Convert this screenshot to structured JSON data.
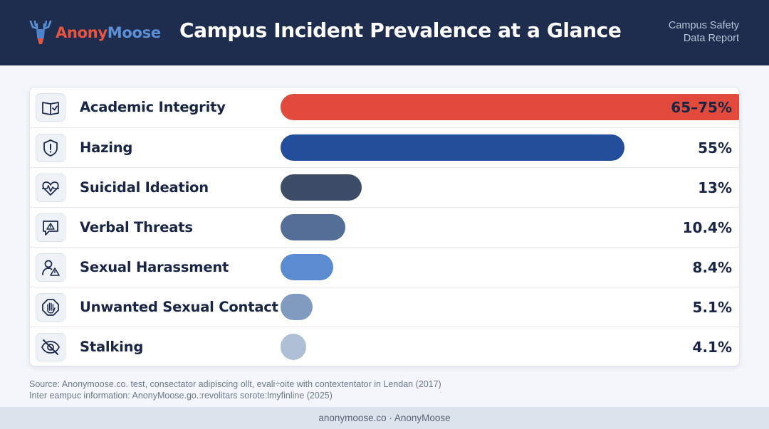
{
  "header": {
    "brand_part1": "Anony",
    "brand_part2": "Moose",
    "title": "Campus Incident Prevalence at a Glance",
    "subtitle_line1": "Campus Safety",
    "subtitle_line2": "Data Report"
  },
  "chart_data": {
    "type": "bar",
    "orientation": "horizontal",
    "title": "Campus Incident Prevalence at a Glance",
    "unit": "%",
    "xlim": [
      0,
      80
    ],
    "grid": false,
    "categories": [
      "Academic Integrity",
      "Hazing",
      "Suicidal Ideation",
      "Verbal Threats",
      "Sexual Harassment",
      "Unwanted Sexual Contact",
      "Stalking"
    ],
    "values": [
      75,
      55,
      13,
      10.4,
      8.4,
      5.1,
      4.1
    ],
    "value_labels": [
      "65–75%",
      "55%",
      "13%",
      "10.4%",
      "8.4%",
      "5.1%",
      "4.1%"
    ],
    "icons": [
      "book-check-icon",
      "shield-alert-icon",
      "heart-pulse-icon",
      "speech-warning-icon",
      "person-warning-icon",
      "hand-stop-icon",
      "eye-off-icon"
    ],
    "colors": [
      "#e24b3b",
      "#234e9c",
      "#3d4d68",
      "#536f98",
      "#5b8ad0",
      "#7f9bc0",
      "#aebfd6"
    ]
  },
  "source": {
    "line1": "Source: Anonymoose.co. test, consectator adipiscing ollt, evali÷oite with contextentator in Lendan (2017)",
    "line2": "Inter eampuc information: AnonyMoose.go.:revolitars sorote:lmyfinline (2025)"
  },
  "footer": {
    "text": "anonymoose.co · AnonyMoose"
  }
}
